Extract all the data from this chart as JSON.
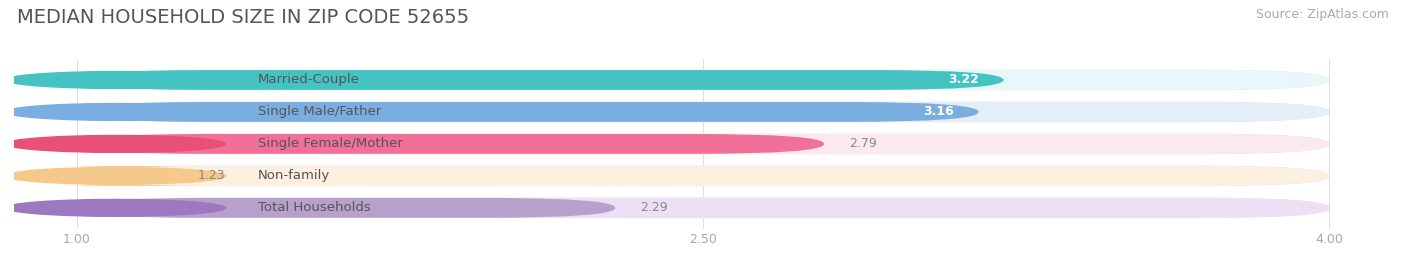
{
  "title": "MEDIAN HOUSEHOLD SIZE IN ZIP CODE 52655",
  "source": "Source: ZipAtlas.com",
  "categories": [
    "Married-Couple",
    "Single Male/Father",
    "Single Female/Mother",
    "Non-family",
    "Total Households"
  ],
  "values": [
    3.22,
    3.16,
    2.79,
    1.23,
    2.29
  ],
  "bar_colors": [
    "#45c3c3",
    "#7baee0",
    "#f07098",
    "#f5c98a",
    "#b8a0cc"
  ],
  "bar_bg_colors": [
    "#e8f8f8",
    "#e4eef8",
    "#fce8f0",
    "#fdf0e0",
    "#ede0f5"
  ],
  "dot_colors": [
    "#45c3c3",
    "#7baee0",
    "#e8507a",
    "#f5c98a",
    "#9b78c0"
  ],
  "xlim_min": 1.0,
  "xlim_max": 4.0,
  "xticks": [
    1.0,
    2.5,
    4.0
  ],
  "xtick_labels": [
    "1.00",
    "2.50",
    "4.00"
  ],
  "value_inside_colors": [
    "#ffffff",
    "#ffffff",
    "#888888",
    "#888888",
    "#888888"
  ],
  "value_outside_color": "#888888",
  "title_color": "#555555",
  "source_color": "#aaaaaa",
  "title_fontsize": 14,
  "source_fontsize": 9,
  "bar_label_fontsize": 9.5,
  "value_fontsize": 9,
  "figsize": [
    14.06,
    2.69
  ],
  "dpi": 100,
  "bg_color": "#ffffff",
  "row_bg_color": "#f5f5f5",
  "value_inside_threshold": 2.8
}
